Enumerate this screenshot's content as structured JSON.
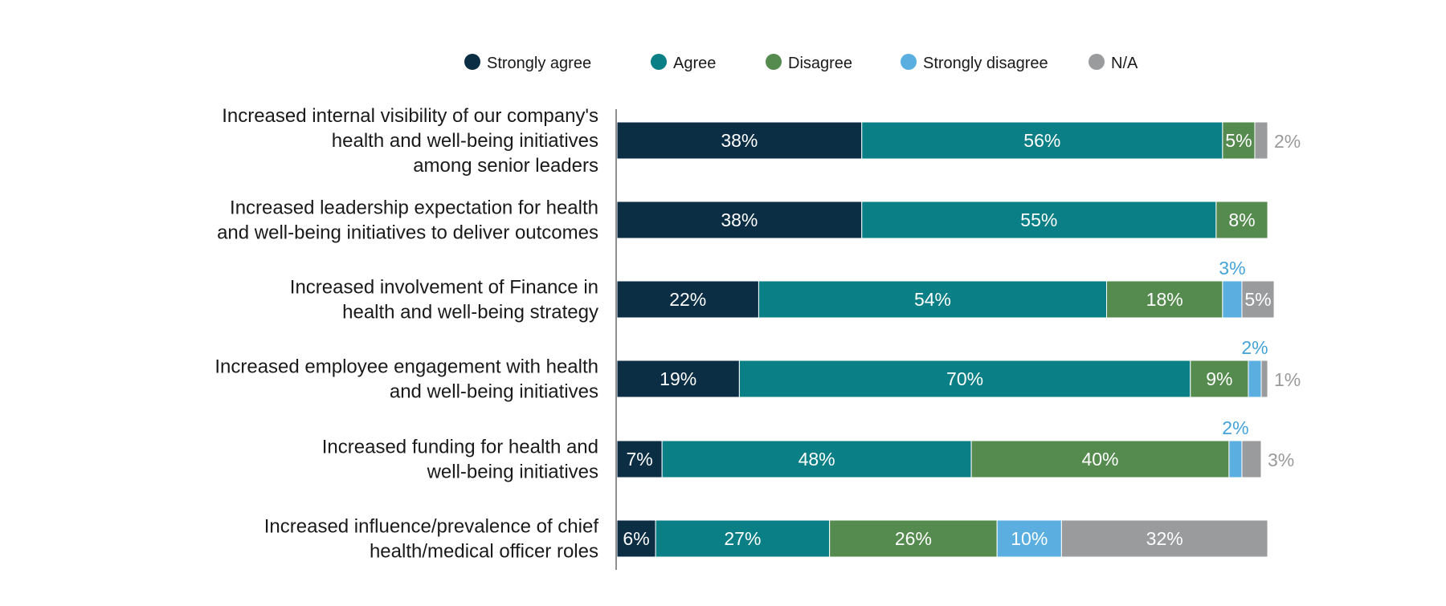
{
  "chart_data": {
    "type": "bar",
    "orientation": "horizontal",
    "stacked": true,
    "title": "",
    "xlabel": "",
    "ylabel": "",
    "xlim": [
      0,
      100
    ],
    "legend_position": "top",
    "grid": false,
    "categories": [
      "Increased internal visibility of our company's health and well-being initiatives among senior leaders",
      "Increased leadership expectation for health and well-being initiatives to deliver outcomes",
      "Increased involvement of Finance in health and well-being strategy",
      "Increased employee engagement with health and well-being initiatives",
      "Increased funding for health and well-being initiatives",
      "Increased influence/prevalence of chief health/medical officer roles"
    ],
    "category_lines": [
      [
        "Increased internal visibility of our company's",
        "health and well-being initiatives",
        "among senior leaders"
      ],
      [
        "Increased leadership expectation for health",
        "and well-being initiatives to deliver outcomes"
      ],
      [
        "Increased involvement of Finance in",
        "health and well-being strategy"
      ],
      [
        "Increased employee engagement with health",
        "and well-being initiatives"
      ],
      [
        "Increased funding for health and",
        "well-being initiatives"
      ],
      [
        "Increased influence/prevalence of chief",
        "health/medical officer roles"
      ]
    ],
    "series": [
      {
        "name": "Strongly agree",
        "color": "#0b2e45",
        "values": [
          38,
          38,
          22,
          19,
          7,
          6
        ]
      },
      {
        "name": "Agree",
        "color": "#0a7f86",
        "values": [
          56,
          55,
          54,
          70,
          48,
          27
        ]
      },
      {
        "name": "Disagree",
        "color": "#558b4e",
        "values": [
          5,
          8,
          18,
          9,
          40,
          26
        ]
      },
      {
        "name": "Strongly disagree",
        "color": "#5aafe0",
        "values": [
          0,
          0,
          3,
          2,
          2,
          10
        ]
      },
      {
        "name": "N/A",
        "color": "#999b9c",
        "values": [
          2,
          0,
          5,
          1,
          3,
          32
        ]
      }
    ],
    "data_labels": [
      [
        "38%",
        "56%",
        "5%",
        "",
        "2%"
      ],
      [
        "38%",
        "55%",
        "8%",
        "",
        ""
      ],
      [
        "22%",
        "54%",
        "18%",
        "3%",
        "5%"
      ],
      [
        "19%",
        "70%",
        "9%",
        "2%",
        "1%"
      ],
      [
        "7%",
        "48%",
        "40%",
        "2%",
        "3%"
      ],
      [
        "6%",
        "27%",
        "26%",
        "10%",
        "32%"
      ]
    ]
  }
}
